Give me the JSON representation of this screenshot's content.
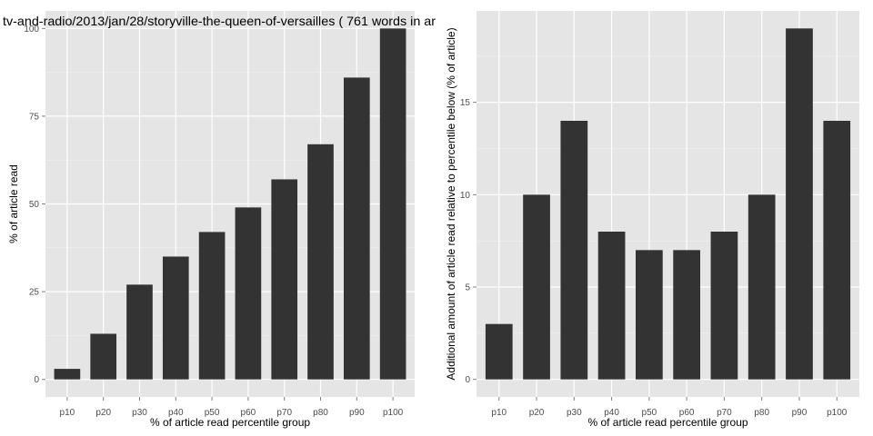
{
  "chart_data": [
    {
      "type": "bar",
      "title": "tv-and-radio/2013/jan/28/storyville-the-queen-of-versailles ( 761 words in ar",
      "xlabel": "% of article read percentile group",
      "ylabel": "% of article read",
      "categories": [
        "p10",
        "p20",
        "p30",
        "p40",
        "p50",
        "p60",
        "p70",
        "p80",
        "p90",
        "p100"
      ],
      "values": [
        3,
        13,
        27,
        35,
        42,
        49,
        57,
        67,
        86,
        100
      ],
      "ylim": [
        -5,
        105
      ],
      "yticks": [
        0,
        25,
        50,
        75,
        100
      ],
      "grid": true
    },
    {
      "type": "bar",
      "title": "",
      "xlabel": "% of article read percentile group",
      "ylabel": "Additional amount of article read relative to percentile below (% of article)",
      "categories": [
        "p10",
        "p20",
        "p30",
        "p40",
        "p50",
        "p60",
        "p70",
        "p80",
        "p90",
        "p100"
      ],
      "values": [
        3,
        10,
        14,
        8,
        7,
        7,
        8,
        10,
        19,
        14
      ],
      "ylim": [
        -0.95,
        19.95
      ],
      "yticks": [
        0,
        5,
        10,
        15
      ],
      "grid": true
    }
  ],
  "colors": {
    "panel_bg": "#e5e5e5",
    "grid_major": "#ffffff",
    "grid_minor": "#f2f2f2",
    "bar": "#333333",
    "tick_text": "#4d4d4d"
  }
}
